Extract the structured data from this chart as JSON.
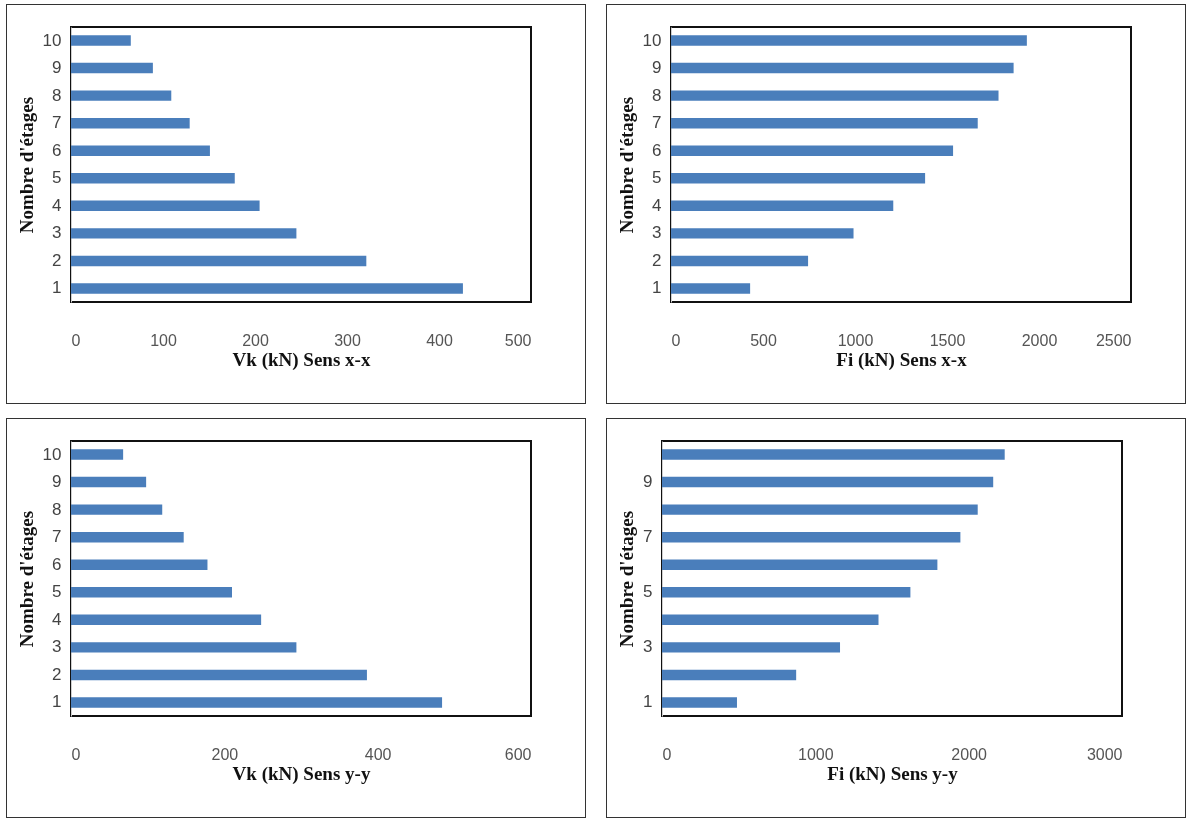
{
  "chart_data": [
    {
      "type": "bar",
      "orientation": "horizontal",
      "xlabel": "Vk (kN) Sens x-x",
      "ylabel": "Nombre d'étages",
      "categories": [
        "10",
        "9",
        "8",
        "7",
        "6",
        "5",
        "4",
        "3",
        "2",
        "1"
      ],
      "values": [
        65,
        89,
        109,
        129,
        151,
        178,
        205,
        245,
        321,
        426
      ],
      "color": "#4a7ebb",
      "xlim": [
        0,
        500
      ],
      "xticks": [
        0,
        100,
        200,
        300,
        400,
        500
      ],
      "grid": false
    },
    {
      "type": "bar",
      "orientation": "horizontal",
      "xlabel": "Fi (kN) Sens x-x",
      "ylabel": "Nombre d'étages",
      "categories": [
        "10",
        "9",
        "8",
        "7",
        "6",
        "5",
        "4",
        "3",
        "2",
        "1"
      ],
      "values": [
        1934,
        1862,
        1780,
        1667,
        1533,
        1381,
        1208,
        992,
        745,
        430
      ],
      "color": "#4a7ebb",
      "xlim": [
        0,
        2500
      ],
      "xticks": [
        0,
        500,
        1000,
        1500,
        2000,
        2500
      ],
      "grid": false
    },
    {
      "type": "bar",
      "orientation": "horizontal",
      "xlabel": "Vk (kN) Sens y-y",
      "ylabel": "Nombre d'étages",
      "categories": [
        "10",
        "9",
        "8",
        "7",
        "6",
        "5",
        "4",
        "3",
        "2",
        "1"
      ],
      "values": [
        68,
        98,
        119,
        147,
        178,
        210,
        248,
        294,
        386,
        484
      ],
      "color": "#4a7ebb",
      "xlim": [
        0,
        600
      ],
      "xticks": [
        0,
        200,
        400,
        600
      ],
      "grid": false
    },
    {
      "type": "bar",
      "orientation": "horizontal",
      "xlabel": "Fi (kN) Sens y-y",
      "ylabel": "Nombre d'étages",
      "categories": [
        null,
        "9",
        null,
        "7",
        null,
        "5",
        null,
        "3",
        null,
        "1"
      ],
      "values": [
        2235,
        2160,
        2059,
        1946,
        1796,
        1620,
        1412,
        1161,
        875,
        489
      ],
      "color": "#4a7ebb",
      "xlim": [
        0,
        3000
      ],
      "xticks": [
        0,
        1000,
        2000,
        3000
      ],
      "grid": false
    }
  ]
}
